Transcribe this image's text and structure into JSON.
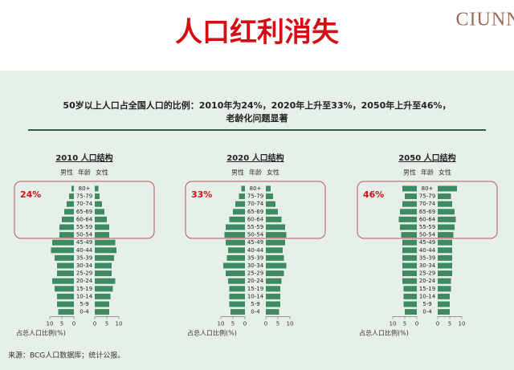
{
  "title": "人口红利消失",
  "logo": "CIUNN",
  "subtitle": [
    "50岁以上人口占全国人口的比例：2010年为24%，2020年上升至33%，2050年上升至46%，",
    "老龄化问题显著"
  ],
  "source": "来源：BCG人口数据库；统计公报。",
  "chart_data": [
    {
      "type": "pyramid",
      "title": "2010 人口结构",
      "age_label": "年龄",
      "annotation": "24%",
      "xlabel": "占总人口比例(%)",
      "categories": [
        "80+",
        "75-79",
        "70-74",
        "65-69",
        "60-64",
        "55-59",
        "50-54",
        "45-49",
        "40-44",
        "35-39",
        "30-34",
        "25-29",
        "20-24",
        "15-19",
        "10-14",
        "5-9",
        "0-4"
      ],
      "series": [
        {
          "name": "男性",
          "color": "#3e8a63",
          "values": [
            1,
            2,
            3,
            4,
            5,
            6,
            6,
            9,
            9.5,
            8,
            7,
            7,
            9,
            8,
            7,
            7,
            6.5
          ]
        },
        {
          "name": "女性",
          "color": "#3e8a63",
          "values": [
            1.5,
            2,
            3,
            4,
            5,
            6,
            6,
            8.5,
            9,
            8,
            7,
            7,
            8.5,
            7.5,
            6.5,
            6,
            6
          ]
        }
      ],
      "xlim": [
        0,
        10
      ],
      "xticks": [
        0,
        5,
        10
      ]
    },
    {
      "type": "pyramid",
      "title": "2020 人口结构",
      "age_label": "年龄",
      "annotation": "33%",
      "xlabel": "占总人口比例(%)",
      "categories": [
        "80+",
        "75-79",
        "70-74",
        "65-69",
        "60-64",
        "55-59",
        "50-54",
        "45-49",
        "40-44",
        "35-39",
        "30-34",
        "25-29",
        "20-24",
        "15-19",
        "10-14",
        "5-9",
        "0-4"
      ],
      "series": [
        {
          "name": "男性",
          "color": "#3e8a63",
          "values": [
            1.5,
            2.5,
            4,
            5,
            6.5,
            8,
            8.5,
            8,
            7,
            7.5,
            9,
            8,
            7,
            6.5,
            6.5,
            6.5,
            6
          ]
        },
        {
          "name": "女性",
          "color": "#3e8a63",
          "values": [
            2,
            3,
            4,
            5,
            6.5,
            8,
            8.5,
            8,
            7,
            7.5,
            8.5,
            7.5,
            6.5,
            6,
            6,
            6,
            5.5
          ]
        }
      ],
      "xlim": [
        0,
        10
      ],
      "xticks": [
        0,
        5,
        10
      ]
    },
    {
      "type": "pyramid",
      "title": "2050 人口结构",
      "age_label": "年龄",
      "annotation": "46%",
      "xlabel": "占总人口比例(%)",
      "categories": [
        "80+",
        "75-79",
        "70-74",
        "65-69",
        "60-64",
        "55-59",
        "50-54",
        "45-49",
        "40-44",
        "35-39",
        "30-34",
        "25-29",
        "20-24",
        "15-19",
        "10-14",
        "5-9",
        "0-4"
      ],
      "series": [
        {
          "name": "男性",
          "color": "#3e8a63",
          "values": [
            6,
            5,
            6,
            7,
            7.5,
            7,
            6.5,
            6,
            6,
            6,
            6,
            6,
            6,
            5.5,
            5.5,
            5.5,
            5
          ]
        },
        {
          "name": "女性",
          "color": "#3e8a63",
          "values": [
            8,
            5.5,
            6,
            7,
            7.5,
            7,
            6.5,
            6,
            6,
            6,
            6,
            6,
            5.5,
            5.5,
            5,
            5,
            5
          ]
        }
      ],
      "xlim": [
        0,
        10
      ],
      "xticks": [
        0,
        5,
        10
      ]
    }
  ]
}
